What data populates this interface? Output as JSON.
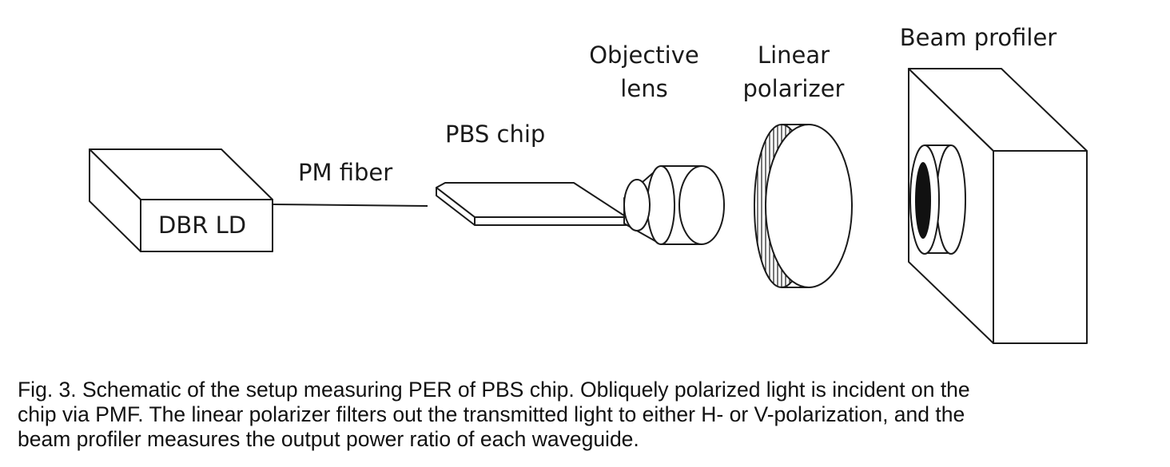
{
  "diagram": {
    "labels": {
      "laser": "DBR LD",
      "fiber": "PM fiber",
      "chip": "PBS chip",
      "objective_line1": "Objective",
      "objective_line2": "lens",
      "polarizer_line1": "Linear",
      "polarizer_line2": "polarizer",
      "profiler": "Beam profiler"
    },
    "colors": {
      "stroke": "#1a1a1a",
      "background": "#ffffff",
      "aperture": "#111111"
    }
  },
  "caption": {
    "line1": "Fig. 3. Schematic of the setup measuring PER of PBS chip. Obliquely polarized light is incident on the",
    "line2": "chip via PMF. The linear polarizer filters out the transmitted light to either H- or V-polarization, and the",
    "line3": "beam profiler measures the output power ratio of each waveguide."
  }
}
